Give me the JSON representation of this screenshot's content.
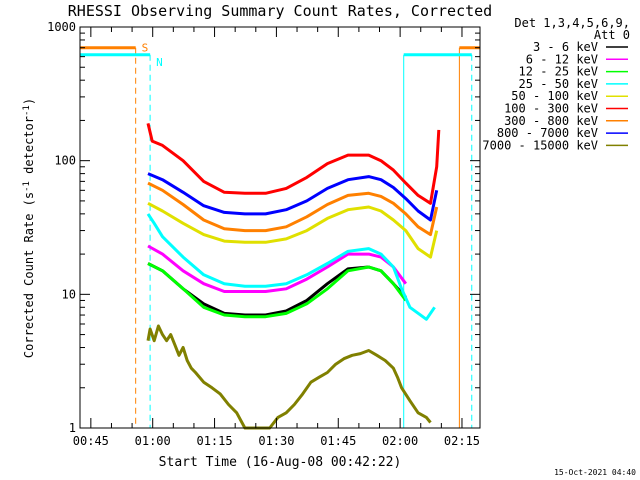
{
  "chart_data": {
    "type": "line",
    "title": "RHESSI Observing Summary Count Rates, Corrected",
    "xlabel": "Start Time (16-Aug-08 00:42:22)",
    "ylabel": "Corrected Count Rate (s⁻¹ detector⁻¹)",
    "ylabel_parts": [
      "Corrected Count Rate (s",
      "-1",
      " detector",
      "-1",
      ")"
    ],
    "x_unit": "minutes after 00:42:22",
    "xlim": [
      0,
      97
    ],
    "ylim": [
      1,
      1000
    ],
    "yscale": "log",
    "grid": false,
    "x_ticks": [
      {
        "t": 2.63,
        "label": "00:45"
      },
      {
        "t": 17.63,
        "label": "01:00"
      },
      {
        "t": 32.63,
        "label": "01:15"
      },
      {
        "t": 47.63,
        "label": "01:30"
      },
      {
        "t": 62.63,
        "label": "01:45"
      },
      {
        "t": 77.63,
        "label": "02:00"
      },
      {
        "t": 92.63,
        "label": "02:15"
      }
    ],
    "y_ticks": [
      {
        "v": 1,
        "label": "1"
      },
      {
        "v": 10,
        "label": "10"
      },
      {
        "v": 100,
        "label": "100"
      },
      {
        "v": 1000,
        "label": "1000"
      }
    ],
    "legend_header": [
      "Det 1,3,4,5,6,9,",
      "Att 0"
    ],
    "legend_position": "right",
    "series": [
      {
        "name": "3 - 6 keV",
        "color": "#000000",
        "x": [
          16.5,
          20,
          25,
          30,
          35,
          40,
          45,
          50,
          55,
          60,
          65,
          70,
          73,
          76,
          79
        ],
        "y": [
          17,
          15,
          11,
          8.5,
          7.2,
          7.0,
          7.0,
          7.5,
          9.0,
          12,
          15.5,
          16,
          15,
          12,
          9.5
        ]
      },
      {
        "name": "6 - 12 keV",
        "color": "#ff00ff",
        "x": [
          16.5,
          20,
          25,
          30,
          35,
          40,
          45,
          50,
          55,
          60,
          65,
          70,
          73,
          76,
          79
        ],
        "y": [
          23,
          20,
          15,
          12,
          10.5,
          10.5,
          10.5,
          11,
          13,
          16,
          20,
          20,
          19,
          16,
          12
        ]
      },
      {
        "name": "12 - 25 keV",
        "color": "#00ff00",
        "x": [
          16.5,
          20,
          25,
          30,
          35,
          40,
          45,
          50,
          55,
          60,
          65,
          70,
          73,
          76,
          79
        ],
        "y": [
          17,
          15,
          11,
          8.0,
          7.0,
          6.8,
          6.8,
          7.2,
          8.5,
          11,
          15,
          16,
          15,
          12,
          9
        ]
      },
      {
        "name": "25 - 50 keV",
        "color": "#00ffff",
        "x": [
          16.5,
          18,
          20,
          25,
          30,
          35,
          40,
          45,
          50,
          55,
          60,
          65,
          70,
          73,
          76,
          78,
          80,
          84,
          86
        ],
        "y": [
          40,
          34,
          27,
          19,
          14,
          12,
          11.5,
          11.5,
          12,
          14,
          17,
          21,
          22,
          20,
          16,
          11,
          8,
          6.5,
          8
        ]
      },
      {
        "name": "50 - 100 keV",
        "color": "#e0e000",
        "x": [
          16.5,
          20,
          25,
          30,
          35,
          40,
          45,
          50,
          55,
          60,
          65,
          70,
          73,
          76,
          79,
          82,
          85,
          86.5
        ],
        "y": [
          48,
          42,
          34,
          28,
          25,
          24.5,
          24.5,
          26,
          30,
          37,
          43,
          45,
          42,
          36,
          30,
          22,
          19,
          30
        ]
      },
      {
        "name": "100 - 300 keV",
        "color": "#ff0000",
        "x": [
          16.5,
          17.5,
          20,
          25,
          30,
          35,
          40,
          45,
          50,
          55,
          60,
          65,
          70,
          73,
          76,
          79,
          82,
          85,
          86.5,
          87
        ],
        "y": [
          190,
          140,
          130,
          100,
          70,
          58,
          57,
          57,
          62,
          75,
          95,
          110,
          110,
          100,
          85,
          68,
          55,
          48,
          90,
          170
        ]
      },
      {
        "name": "300 - 800 keV",
        "color": "#ff8000",
        "x": [
          16.5,
          20,
          25,
          30,
          35,
          40,
          45,
          50,
          55,
          60,
          65,
          70,
          73,
          76,
          79,
          82,
          85,
          86.5
        ],
        "y": [
          68,
          60,
          47,
          36,
          31,
          30,
          30,
          32,
          38,
          47,
          55,
          57,
          54,
          48,
          40,
          32,
          28,
          45
        ]
      },
      {
        "name": "800 - 7000 keV",
        "color": "#0000ff",
        "x": [
          16.5,
          20,
          25,
          30,
          35,
          40,
          45,
          50,
          55,
          60,
          65,
          70,
          73,
          76,
          79,
          82,
          85,
          86.5
        ],
        "y": [
          80,
          72,
          58,
          46,
          41,
          40,
          40,
          43,
          50,
          62,
          72,
          76,
          72,
          63,
          52,
          42,
          36,
          60
        ]
      },
      {
        "name": "7000 - 15000 keV",
        "color": "#808000",
        "x": [
          16.5,
          17,
          18,
          19,
          20,
          21,
          22,
          23,
          24,
          25,
          26,
          27,
          28,
          30,
          32,
          34,
          36,
          38,
          40,
          42,
          44,
          46,
          48,
          50,
          52,
          54,
          56,
          58,
          60,
          62,
          64,
          66,
          68,
          70,
          72,
          74,
          76,
          77,
          78,
          80,
          82,
          84,
          85
        ],
        "y": [
          4.5,
          5.5,
          4.5,
          5.8,
          5.0,
          4.5,
          5.0,
          4.2,
          3.5,
          4.0,
          3.2,
          2.8,
          2.6,
          2.2,
          2.0,
          1.8,
          1.5,
          1.3,
          1.0,
          1.0,
          1.0,
          1.0,
          1.2,
          1.3,
          1.5,
          1.8,
          2.2,
          2.4,
          2.6,
          3.0,
          3.3,
          3.5,
          3.6,
          3.8,
          3.5,
          3.2,
          2.8,
          2.4,
          2.0,
          1.6,
          1.3,
          1.2,
          1.1
        ]
      }
    ],
    "state_flags": [
      {
        "label": "S",
        "color": "#ff8000",
        "level": 700,
        "segments": [
          [
            0,
            13.5
          ],
          [
            92,
            97
          ]
        ],
        "edges": [
          13.5,
          92
        ]
      },
      {
        "label": "N",
        "color": "#00ffff",
        "level": 620,
        "segments": [
          [
            0,
            17
          ],
          [
            78.5,
            95
          ]
        ],
        "edges": [
          0,
          17,
          78.5,
          95
        ]
      }
    ],
    "footer_timestamp": "15-Oct-2021 04:40"
  }
}
